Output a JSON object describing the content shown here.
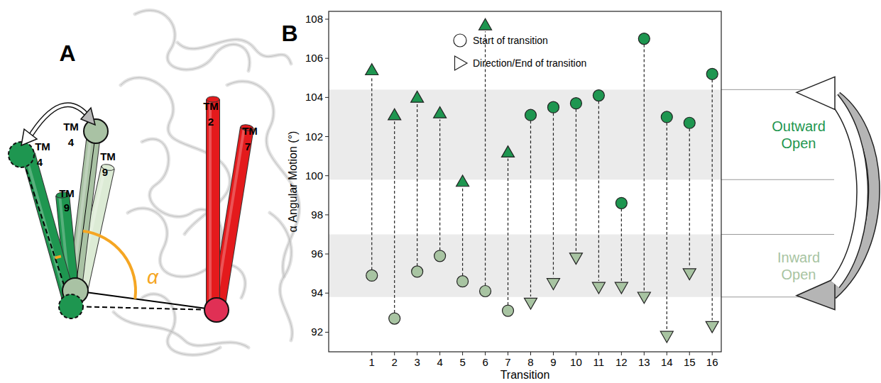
{
  "diagram": {
    "panel_label": "A",
    "helices": [
      {
        "label": "TM",
        "number": "4"
      },
      {
        "label": "TM",
        "number": "9"
      },
      {
        "label": "TM",
        "number": "4"
      },
      {
        "label": "TM",
        "number": "9"
      },
      {
        "label": "TM",
        "number": "2"
      },
      {
        "label": "TM",
        "number": "7"
      }
    ],
    "angle_label": "α"
  },
  "chart_data": {
    "type": "scatter",
    "panel_label": "B",
    "x_label": "Transition",
    "y_label": "α Angular Motion (°)",
    "x": [
      1,
      2,
      3,
      4,
      5,
      6,
      7,
      8,
      9,
      10,
      11,
      12,
      13,
      14,
      15,
      16
    ],
    "series": [
      {
        "name": "Start of transition",
        "marker": "circle",
        "values": [
          94.9,
          92.7,
          95.1,
          95.9,
          94.6,
          94.1,
          93.1,
          103.1,
          103.5,
          103.7,
          104.1,
          98.6,
          107.0,
          103.0,
          102.7,
          105.2
        ],
        "colors": [
          "#a8c4a2",
          "#a8c4a2",
          "#a8c4a2",
          "#a8c4a2",
          "#a8c4a2",
          "#a8c4a2",
          "#a8c4a2",
          "#1e9650",
          "#1e9650",
          "#1e9650",
          "#1e9650",
          "#1e9650",
          "#1e9650",
          "#1e9650",
          "#1e9650",
          "#1e9650"
        ]
      },
      {
        "name": "Direction/End of transition",
        "marker": "triangle",
        "values": [
          105.4,
          103.1,
          104.0,
          103.2,
          99.7,
          107.7,
          101.2,
          93.5,
          94.5,
          95.8,
          94.3,
          94.3,
          93.8,
          91.8,
          95.0,
          92.3
        ],
        "colors": [
          "#1e9650",
          "#1e9650",
          "#1e9650",
          "#1e9650",
          "#1e9650",
          "#1e9650",
          "#1e9650",
          "#a8c4a2",
          "#a8c4a2",
          "#a8c4a2",
          "#a8c4a2",
          "#a8c4a2",
          "#a8c4a2",
          "#a8c4a2",
          "#a8c4a2",
          "#a8c4a2"
        ]
      }
    ],
    "bands": [
      {
        "label": "Outward Open",
        "range": [
          99.8,
          104.4
        ],
        "color": "#1e9650"
      },
      {
        "label": "Inward Open",
        "range": [
          93.8,
          97.0
        ],
        "color": "#a8c4a2"
      }
    ],
    "xlim": [
      -0.9,
      16.4
    ],
    "xticks": [
      1,
      2,
      3,
      4,
      5,
      6,
      7,
      8,
      9,
      10,
      11,
      12,
      13,
      14,
      15,
      16
    ],
    "ylim": [
      91,
      108.4
    ],
    "yticks": [
      92,
      94,
      96,
      98,
      100,
      102,
      104,
      106,
      108
    ],
    "legend": "top"
  }
}
